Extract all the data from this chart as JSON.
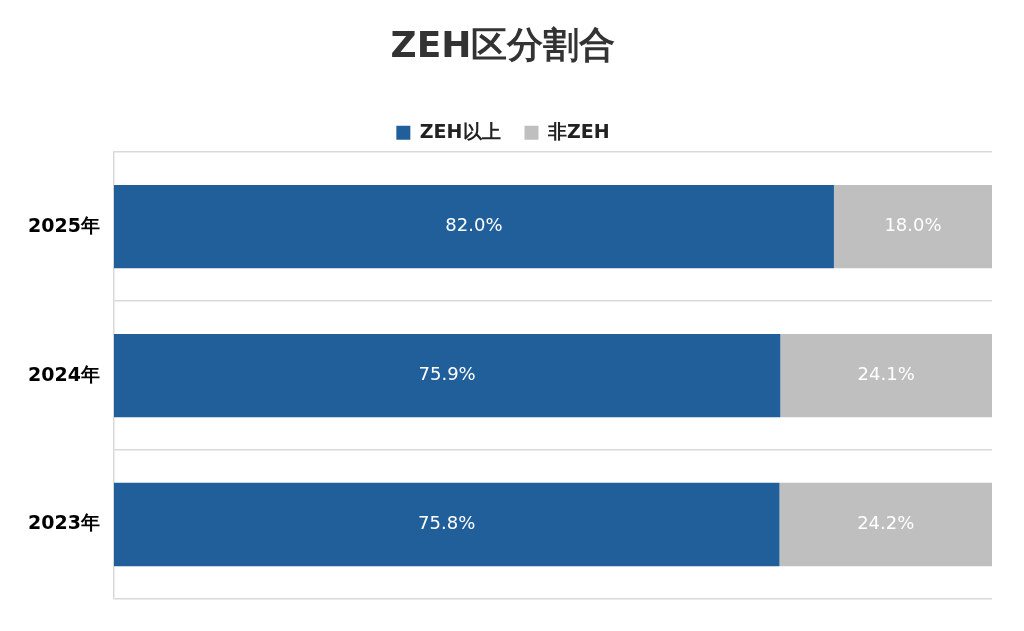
{
  "chart_data": {
    "type": "bar",
    "orientation": "horizontal",
    "stacked": true,
    "title": "ZEH区分割合",
    "categories": [
      "2025年",
      "2024年",
      "2023年"
    ],
    "series": [
      {
        "name": "ZEH以上",
        "color": "#215f9a",
        "values": [
          82.0,
          75.9,
          75.8
        ],
        "value_labels": [
          "82.0%",
          "75.9%",
          "75.8%"
        ]
      },
      {
        "name": "非ZEH",
        "color": "#bfbfbf",
        "values": [
          18.0,
          24.1,
          24.2
        ],
        "value_labels": [
          "18.0%",
          "24.1%",
          "24.2%"
        ]
      }
    ],
    "tick_labels": "y",
    "grid": "y",
    "legend": "top"
  }
}
